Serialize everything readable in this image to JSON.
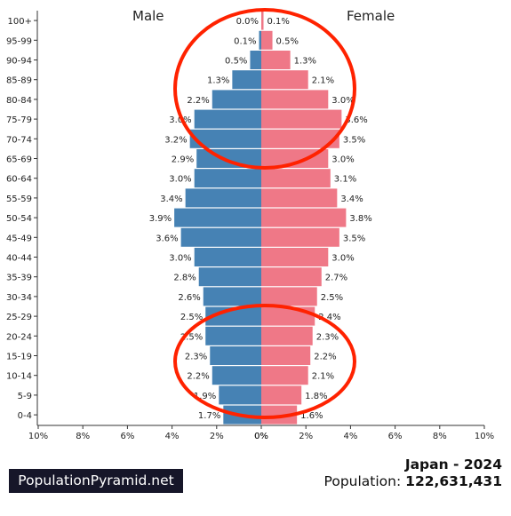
{
  "header": {
    "male_label": "Male",
    "female_label": "Female"
  },
  "footer": {
    "brand": "PopulationPyramid.net",
    "country_year": "Japan - 2024",
    "population_label": "Population:",
    "population_value": "122,631,431"
  },
  "colors": {
    "male": "#4682b4",
    "female": "#ef7887",
    "highlight": "#ff2200"
  },
  "chart_data": {
    "type": "bar",
    "orientation": "horizontal-diverging",
    "categories": [
      "100+",
      "95-99",
      "90-94",
      "85-89",
      "80-84",
      "75-79",
      "70-74",
      "65-69",
      "60-64",
      "55-59",
      "50-54",
      "45-49",
      "40-44",
      "35-39",
      "30-34",
      "25-29",
      "20-24",
      "15-19",
      "10-14",
      "5-9",
      "0-4"
    ],
    "series": [
      {
        "name": "Male",
        "values": [
          0.0,
          0.1,
          0.5,
          1.3,
          2.2,
          3.0,
          3.2,
          2.9,
          3.0,
          3.4,
          3.9,
          3.6,
          3.0,
          2.8,
          2.6,
          2.5,
          2.5,
          2.3,
          2.2,
          1.9,
          1.7
        ]
      },
      {
        "name": "Female",
        "values": [
          0.1,
          0.5,
          1.3,
          2.1,
          3.0,
          3.6,
          3.5,
          3.0,
          3.1,
          3.4,
          3.8,
          3.5,
          3.0,
          2.7,
          2.5,
          2.4,
          2.3,
          2.2,
          2.1,
          1.8,
          1.6
        ]
      }
    ],
    "xlim": [
      0,
      10
    ],
    "xticks": [
      "10%",
      "8%",
      "6%",
      "4%",
      "2%",
      "0%",
      "0%",
      "2%",
      "4%",
      "6%",
      "8%",
      "10%"
    ],
    "annotations": [
      {
        "shape": "ellipse",
        "rows": [
          "100+",
          "65-69"
        ]
      },
      {
        "shape": "ellipse",
        "rows": [
          "25-29",
          "0-4"
        ]
      }
    ]
  }
}
